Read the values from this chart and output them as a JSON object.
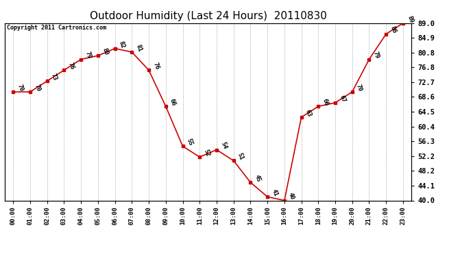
{
  "title": "Outdoor Humidity (Last 24 Hours)  20110830",
  "copyright_text": "Copyright 2011 Cartronics.com",
  "times": [
    "00:00",
    "01:00",
    "02:00",
    "03:00",
    "04:00",
    "05:00",
    "06:00",
    "07:00",
    "08:00",
    "09:00",
    "10:00",
    "11:00",
    "12:00",
    "13:00",
    "14:00",
    "15:00",
    "16:00",
    "17:00",
    "18:00",
    "19:00",
    "20:00",
    "21:00",
    "22:00",
    "23:00"
  ],
  "values": [
    70,
    70,
    73,
    76,
    79,
    80,
    82,
    81,
    76,
    66,
    55,
    52,
    54,
    51,
    45,
    41,
    40,
    63,
    66,
    67,
    70,
    79,
    86,
    89
  ],
  "line_color": "#cc0000",
  "marker_color": "#cc0000",
  "bg_color": "#ffffff",
  "grid_color": "#aaaaaa",
  "ymin": 40.0,
  "ymax": 89.0,
  "yticks_right": [
    40.0,
    44.1,
    48.2,
    52.2,
    56.3,
    60.4,
    64.5,
    68.6,
    72.7,
    76.8,
    80.8,
    84.9,
    89.0
  ],
  "title_fontsize": 11,
  "label_fontsize": 6.5,
  "annot_fontsize": 6.5,
  "copyright_fontsize": 6
}
